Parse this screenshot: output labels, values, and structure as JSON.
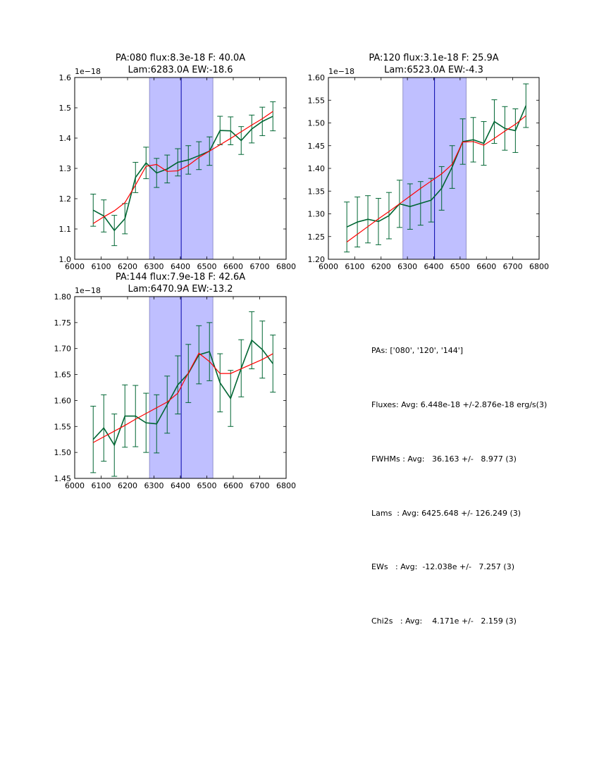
{
  "chart_data": [
    {
      "type": "line",
      "title_line1": "PA:080 flux:8.3e-18 F: 40.0A",
      "title_line2": "Lam:6283.0A EW:-18.6",
      "offset_label": "1e−18",
      "xlim": [
        6000,
        6800
      ],
      "ylim": [
        1.0,
        1.6
      ],
      "xticks": [
        6000,
        6100,
        6200,
        6300,
        6400,
        6500,
        6600,
        6700,
        6800
      ],
      "yticks": [
        1.0,
        1.1,
        1.2,
        1.3,
        1.4,
        1.5,
        1.6
      ],
      "ytick_labels": [
        "1.0",
        "1.1",
        "1.2",
        "1.3",
        "1.4",
        "1.5",
        "1.6"
      ],
      "band": [
        6283,
        6523
      ],
      "center_line": 6403,
      "x": [
        6070,
        6110,
        6150,
        6190,
        6230,
        6270,
        6310,
        6350,
        6390,
        6430,
        6470,
        6510,
        6550,
        6590,
        6630,
        6670,
        6710,
        6750
      ],
      "series": [
        {
          "name": "data",
          "color": "#006633",
          "values": [
            1.162,
            1.143,
            1.095,
            1.134,
            1.27,
            1.318,
            1.285,
            1.298,
            1.32,
            1.328,
            1.342,
            1.357,
            1.425,
            1.424,
            1.392,
            1.43,
            1.455,
            1.472
          ]
        },
        {
          "name": "errors",
          "color": "#006633",
          "values": [
            0.053,
            0.053,
            0.05,
            0.05,
            0.05,
            0.052,
            0.048,
            0.046,
            0.045,
            0.047,
            0.046,
            0.047,
            0.047,
            0.046,
            0.046,
            0.046,
            0.047,
            0.048
          ]
        },
        {
          "name": "fit",
          "color": "#ff0000",
          "values": [
            1.118,
            1.14,
            1.16,
            1.187,
            1.245,
            1.307,
            1.313,
            1.29,
            1.292,
            1.31,
            1.336,
            1.357,
            1.378,
            1.399,
            1.421,
            1.443,
            1.464,
            1.488
          ]
        }
      ]
    },
    {
      "type": "line",
      "title_line1": "PA:120 flux:3.1e-18 F: 25.9A",
      "title_line2": "Lam:6523.0A EW:-4.3",
      "offset_label": "1e−18",
      "xlim": [
        6000,
        6800
      ],
      "ylim": [
        1.2,
        1.6
      ],
      "xticks": [
        6000,
        6100,
        6200,
        6300,
        6400,
        6500,
        6600,
        6700,
        6800
      ],
      "yticks": [
        1.2,
        1.25,
        1.3,
        1.35,
        1.4,
        1.45,
        1.5,
        1.55,
        1.6
      ],
      "ytick_labels": [
        "1.20",
        "1.25",
        "1.30",
        "1.35",
        "1.40",
        "1.45",
        "1.50",
        "1.55",
        "1.60"
      ],
      "band": [
        6283,
        6523
      ],
      "center_line": 6403,
      "x": [
        6070,
        6110,
        6150,
        6190,
        6230,
        6270,
        6310,
        6350,
        6390,
        6430,
        6470,
        6510,
        6550,
        6590,
        6630,
        6670,
        6710,
        6750
      ],
      "series": [
        {
          "name": "data",
          "color": "#006633",
          "values": [
            1.271,
            1.282,
            1.288,
            1.283,
            1.296,
            1.322,
            1.316,
            1.323,
            1.33,
            1.356,
            1.403,
            1.459,
            1.463,
            1.455,
            1.503,
            1.488,
            1.483,
            1.538
          ]
        },
        {
          "name": "errors",
          "color": "#006633",
          "values": [
            0.055,
            0.055,
            0.052,
            0.051,
            0.051,
            0.052,
            0.05,
            0.048,
            0.048,
            0.048,
            0.047,
            0.05,
            0.049,
            0.048,
            0.048,
            0.048,
            0.048,
            0.048
          ]
        },
        {
          "name": "fit",
          "color": "#ff0000",
          "values": [
            1.238,
            1.255,
            1.272,
            1.289,
            1.305,
            1.322,
            1.339,
            1.356,
            1.372,
            1.388,
            1.409,
            1.458,
            1.459,
            1.451,
            1.466,
            1.482,
            1.497,
            1.516
          ]
        }
      ]
    },
    {
      "type": "line",
      "title_line1": "PA:144 flux:7.9e-18 F: 42.6A",
      "title_line2": "Lam:6470.9A EW:-13.2",
      "offset_label": "1e−18",
      "xlim": [
        6000,
        6800
      ],
      "ylim": [
        1.45,
        1.8
      ],
      "xticks": [
        6000,
        6100,
        6200,
        6300,
        6400,
        6500,
        6600,
        6700,
        6800
      ],
      "yticks": [
        1.45,
        1.5,
        1.55,
        1.6,
        1.65,
        1.7,
        1.75,
        1.8
      ],
      "ytick_labels": [
        "1.45",
        "1.50",
        "1.55",
        "1.60",
        "1.65",
        "1.70",
        "1.75",
        "1.80"
      ],
      "band": [
        6283,
        6523
      ],
      "center_line": 6403,
      "x": [
        6070,
        6110,
        6150,
        6190,
        6230,
        6270,
        6310,
        6350,
        6390,
        6430,
        6470,
        6510,
        6550,
        6590,
        6630,
        6670,
        6710,
        6750
      ],
      "series": [
        {
          "name": "data",
          "color": "#006633",
          "values": [
            1.525,
            1.547,
            1.514,
            1.57,
            1.57,
            1.557,
            1.555,
            1.592,
            1.63,
            1.652,
            1.688,
            1.694,
            1.634,
            1.604,
            1.662,
            1.716,
            1.698,
            1.671
          ]
        },
        {
          "name": "errors",
          "color": "#006633",
          "values": [
            0.064,
            0.064,
            0.06,
            0.06,
            0.059,
            0.057,
            0.056,
            0.055,
            0.056,
            0.056,
            0.056,
            0.056,
            0.056,
            0.054,
            0.055,
            0.055,
            0.055,
            0.055
          ]
        },
        {
          "name": "fit",
          "color": "#ff0000",
          "values": [
            1.519,
            1.53,
            1.541,
            1.552,
            1.564,
            1.575,
            1.586,
            1.597,
            1.614,
            1.653,
            1.691,
            1.675,
            1.652,
            1.652,
            1.661,
            1.67,
            1.679,
            1.69
          ]
        }
      ]
    }
  ],
  "summary": [
    "PAs: ['080', '120', '144']",
    "Fluxes: Avg: 6.448e-18 +/-2.876e-18 erg/s(3)",
    "FWHMs : Avg:   36.163 +/-   8.977 (3)",
    "Lams  : Avg: 6425.648 +/- 126.249 (3)",
    "EWs   : Avg:  -12.038e +/-   7.257 (3)",
    "Chi2s   : Avg:    4.171e +/-   2.159 (3)"
  ]
}
